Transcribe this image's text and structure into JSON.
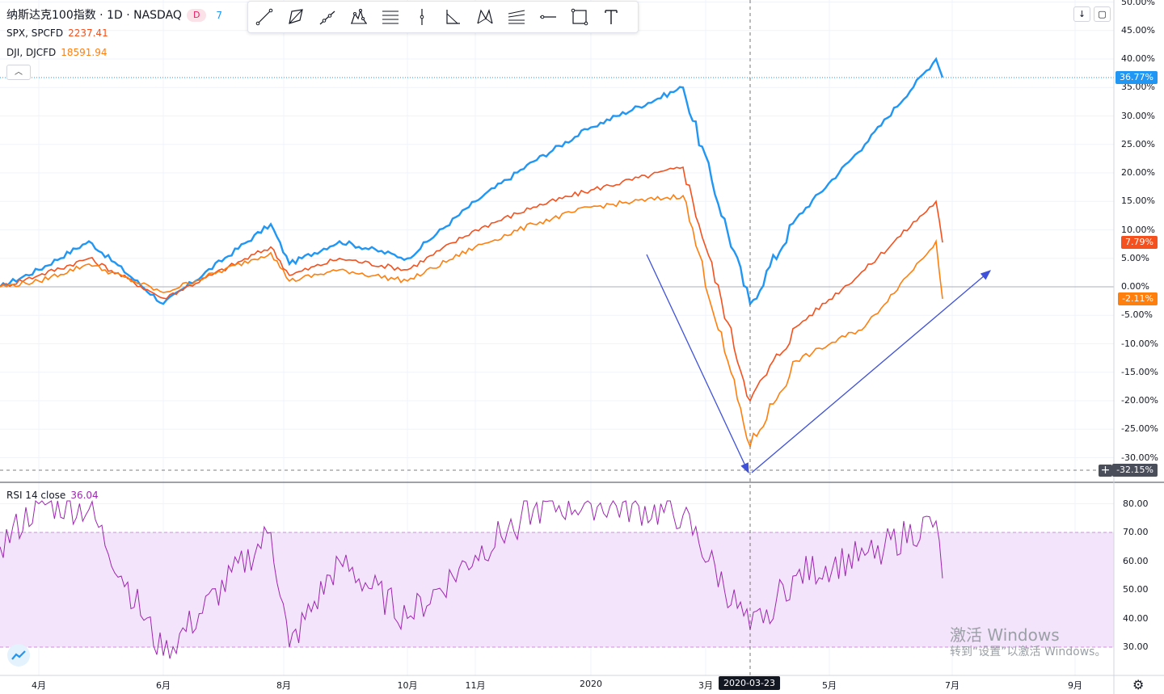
{
  "legend": {
    "main_title": "纳斯达克100指数 · 1D · NASDAQ",
    "main_badge": "D",
    "main_value": "7",
    "spx_name": "SPX, SPCFD",
    "spx_value": "2237.41",
    "dji_name": "DJI, DJCFD",
    "dji_value": "18591.94",
    "rsi_name": "RSI 14 close",
    "rsi_value": "36.04"
  },
  "toolbar": {
    "tools": [
      "trend-line",
      "polyline",
      "ray",
      "pattern",
      "horizontal-lines",
      "vertical-line",
      "angle",
      "xabcd",
      "fib-channel",
      "horizontal-ray",
      "rectangle",
      "text"
    ]
  },
  "price_tags": {
    "ndx": "36.77%",
    "spx": "7.79%",
    "dji": "-2.11%",
    "cursor": "-32.15%"
  },
  "y_axis_labels": [
    "50.00%",
    "45.00%",
    "40.00%",
    "35.00%",
    "30.00%",
    "25.00%",
    "20.00%",
    "15.00%",
    "10.00%",
    "5.00%",
    "0.00%",
    "-5.00%",
    "-10.00%",
    "-15.00%",
    "-20.00%",
    "-25.00%",
    "-30.00%"
  ],
  "rsi_axis_labels": [
    "80.00",
    "70.00",
    "60.00",
    "50.00",
    "40.00",
    "30.00"
  ],
  "x_axis_labels": [
    "4月",
    "6月",
    "8月",
    "10月",
    "11月",
    "2020",
    "3月",
    "5月",
    "7月",
    "9月"
  ],
  "cursor_date": "2020-03-23",
  "watermark": {
    "line1": "激活 Windows",
    "line2": "转到“设置”以激活 Windows。"
  },
  "colors": {
    "ndx": "#2196f3",
    "spx": "#f4511e",
    "dji": "#ff7f0e",
    "rsi": "#9c27b0",
    "arrow": "#3f51d8"
  },
  "chart_data": [
    {
      "type": "line",
      "title": "",
      "y_unit": "%",
      "ylim": [
        -32,
        50
      ],
      "x": [
        "2019-03",
        "2019-04",
        "2019-05",
        "2019-06",
        "2019-07",
        "2019-08",
        "2019-09",
        "2019-10",
        "2019-11",
        "2019-12",
        "2020-01",
        "2020-02-19",
        "2020-03-23",
        "2020-04",
        "2020-05",
        "2020-06",
        "2020-06-25"
      ],
      "series": [
        {
          "name": "纳斯达克100指数",
          "values": [
            0,
            3,
            8,
            -3,
            11,
            4,
            8,
            5,
            15,
            22,
            28,
            35,
            -3,
            12,
            25,
            40,
            36.77
          ]
        },
        {
          "name": "SPX",
          "values": [
            0,
            2,
            5,
            -2,
            7,
            2,
            5,
            3,
            10,
            14,
            17,
            21,
            -20,
            -7,
            3,
            15,
            7.79
          ]
        },
        {
          "name": "DJI",
          "values": [
            0,
            1,
            4,
            -1,
            6,
            1,
            3,
            1,
            7,
            11,
            14,
            16,
            -28,
            -13,
            -7,
            8,
            -2.11
          ]
        }
      ]
    },
    {
      "type": "line",
      "title": "",
      "ylim": [
        25,
        83
      ],
      "x": [
        "2019-03",
        "2019-04",
        "2019-05",
        "2019-06",
        "2019-07",
        "2019-08",
        "2019-09",
        "2019-10",
        "2019-11",
        "2019-12",
        "2020-01",
        "2020-02-19",
        "2020-03-23",
        "2020-04",
        "2020-05",
        "2020-06",
        "2020-06-25"
      ],
      "series": [
        {
          "name": "RSI 14 close",
          "values": [
            65,
            80,
            78,
            27,
            70,
            30,
            60,
            40,
            62,
            78,
            80,
            76,
            36,
            55,
            62,
            74,
            54
          ]
        }
      ],
      "bands": [
        30,
        70
      ]
    }
  ]
}
